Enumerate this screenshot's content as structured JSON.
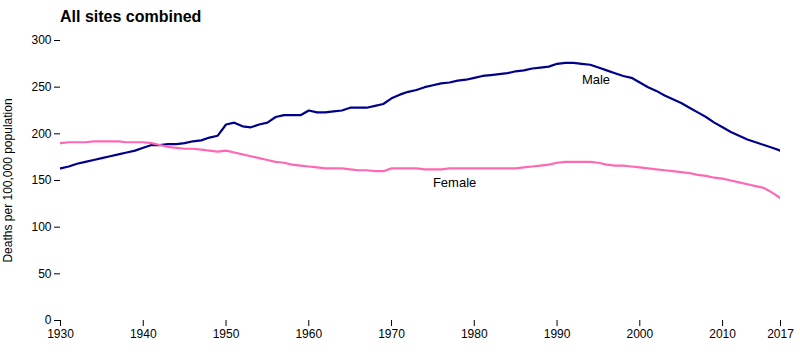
{
  "chart_data": {
    "type": "line",
    "title": "All sites combined",
    "ylabel": "Deaths per 100,000 population",
    "xlim": [
      1930,
      2017
    ],
    "ylim": [
      0,
      300
    ],
    "xticks": [
      1930,
      1940,
      1950,
      1960,
      1970,
      1980,
      1990,
      2000,
      2010,
      2017
    ],
    "yticks": [
      0,
      50,
      100,
      150,
      200,
      250,
      300
    ],
    "grid": false,
    "x": [
      1930,
      1931,
      1932,
      1933,
      1934,
      1935,
      1936,
      1937,
      1938,
      1939,
      1940,
      1941,
      1942,
      1943,
      1944,
      1945,
      1946,
      1947,
      1948,
      1949,
      1950,
      1951,
      1952,
      1953,
      1954,
      1955,
      1956,
      1957,
      1958,
      1959,
      1960,
      1961,
      1962,
      1963,
      1964,
      1965,
      1966,
      1967,
      1968,
      1969,
      1970,
      1971,
      1972,
      1973,
      1974,
      1975,
      1976,
      1977,
      1978,
      1979,
      1980,
      1981,
      1982,
      1983,
      1984,
      1985,
      1986,
      1987,
      1988,
      1989,
      1990,
      1991,
      1992,
      1993,
      1994,
      1995,
      1996,
      1997,
      1998,
      1999,
      2000,
      2001,
      2002,
      2003,
      2004,
      2005,
      2006,
      2007,
      2008,
      2009,
      2010,
      2011,
      2012,
      2013,
      2014,
      2015,
      2016,
      2017
    ],
    "series": [
      {
        "name": "Male",
        "color": "#00008B",
        "values": [
          163,
          165,
          168,
          170,
          172,
          174,
          176,
          178,
          180,
          182,
          185,
          188,
          188,
          189,
          189,
          190,
          192,
          193,
          196,
          198,
          210,
          212,
          208,
          207,
          210,
          212,
          218,
          220,
          220,
          220,
          225,
          223,
          223,
          224,
          225,
          228,
          228,
          228,
          230,
          232,
          238,
          242,
          245,
          247,
          250,
          252,
          254,
          255,
          257,
          258,
          260,
          262,
          263,
          264,
          265,
          267,
          268,
          270,
          271,
          272,
          275,
          276,
          276,
          275,
          274,
          271,
          268,
          265,
          262,
          260,
          255,
          250,
          246,
          241,
          237,
          233,
          228,
          223,
          218,
          212,
          207,
          202,
          198,
          194,
          191,
          188,
          185,
          182
        ]
      },
      {
        "name": "Female",
        "color": "#FF69B4",
        "values": [
          190,
          191,
          191,
          191,
          192,
          192,
          192,
          192,
          191,
          191,
          191,
          190,
          188,
          186,
          185,
          184,
          184,
          183,
          182,
          181,
          182,
          180,
          178,
          176,
          174,
          172,
          170,
          169,
          167,
          166,
          165,
          164,
          163,
          163,
          163,
          162,
          161,
          161,
          160,
          160,
          163,
          163,
          163,
          163,
          162,
          162,
          162,
          163,
          163,
          163,
          163,
          163,
          163,
          163,
          163,
          163,
          164,
          165,
          166,
          167,
          169,
          170,
          170,
          170,
          170,
          169,
          167,
          166,
          166,
          165,
          164,
          163,
          162,
          161,
          160,
          159,
          158,
          156,
          155,
          153,
          152,
          150,
          148,
          146,
          144,
          142,
          137,
          131
        ]
      }
    ],
    "annotations": [
      {
        "text": "Male",
        "x": 1993,
        "y": 258
      },
      {
        "text": "Female",
        "x": 1975,
        "y": 148
      }
    ]
  }
}
